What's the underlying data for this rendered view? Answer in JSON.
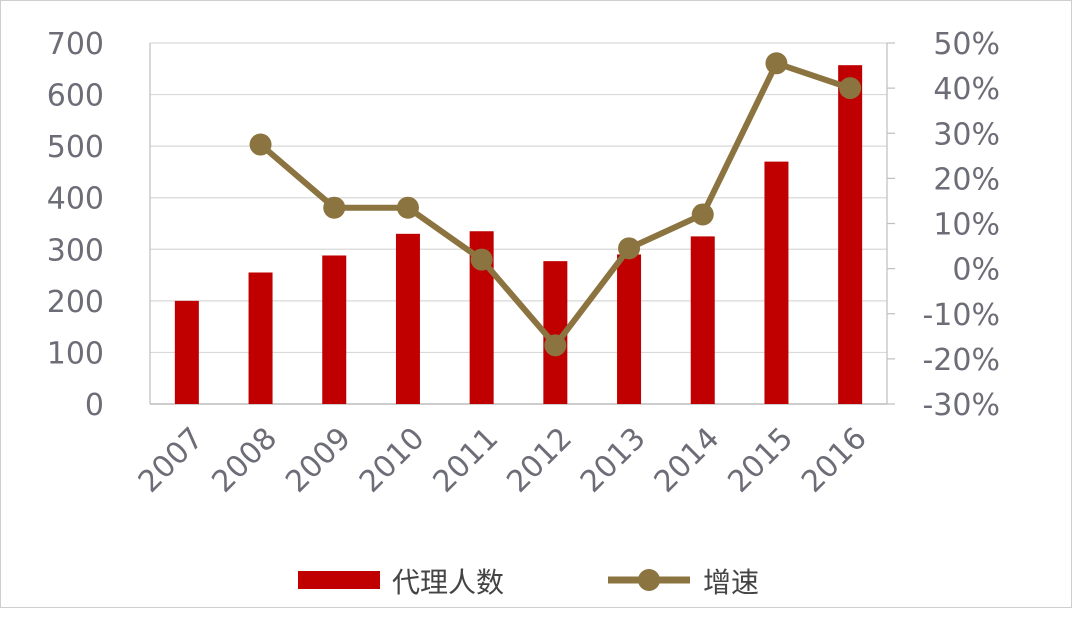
{
  "chart_data": {
    "type": "bar",
    "categories": [
      "2007",
      "2008",
      "2009",
      "2010",
      "2011",
      "2012",
      "2013",
      "2014",
      "2015",
      "2016"
    ],
    "series": [
      {
        "name": "代理人数",
        "type": "bar",
        "axis": "left",
        "color": "#c00000",
        "values": [
          200,
          255,
          288,
          330,
          335,
          277,
          290,
          325,
          470,
          657
        ]
      },
      {
        "name": "增速",
        "type": "line",
        "axis": "right",
        "color": "#8b7440",
        "values": [
          null,
          27.5,
          13.5,
          13.5,
          2.0,
          -17.0,
          4.5,
          12.0,
          45.5,
          40.0
        ]
      }
    ],
    "y_left": {
      "range": [
        0,
        700
      ],
      "ticks": [
        "0",
        "100",
        "200",
        "300",
        "400",
        "500",
        "600",
        "700"
      ]
    },
    "y_right": {
      "range": [
        -30,
        50
      ],
      "ticks": [
        "-30%",
        "-20%",
        "-10%",
        "0%",
        "10%",
        "20%",
        "30%",
        "40%",
        "50%"
      ]
    },
    "grid": true,
    "legend": "bottom"
  }
}
